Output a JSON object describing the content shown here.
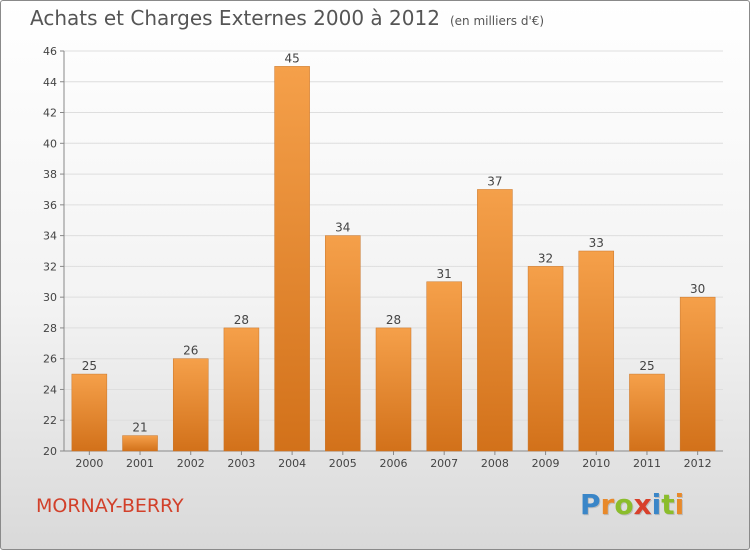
{
  "chart_data": {
    "type": "bar",
    "title": "Achats et Charges Externes 2000 à 2012",
    "unit": "(en milliers d'€)",
    "categories": [
      "2000",
      "2001",
      "2002",
      "2003",
      "2004",
      "2005",
      "2006",
      "2007",
      "2008",
      "2009",
      "2010",
      "2011",
      "2012"
    ],
    "values": [
      25,
      21,
      26,
      28,
      45,
      34,
      28,
      31,
      37,
      32,
      33,
      25,
      30
    ],
    "ylim": [
      20,
      46
    ],
    "yticks": [
      20,
      22,
      24,
      26,
      28,
      30,
      32,
      34,
      36,
      38,
      40,
      42,
      44,
      46
    ],
    "xlabel": "",
    "ylabel": "",
    "grid": true,
    "bar_color": "#f5a04a",
    "bar_color_dark": "#d2711a"
  },
  "footer": {
    "commune": "MORNAY-BERRY",
    "logo_letters": [
      {
        "ch": "P",
        "color": "#3a86c8"
      },
      {
        "ch": "r",
        "color": "#e8892a"
      },
      {
        "ch": "o",
        "color": "#8bbd2c"
      },
      {
        "ch": "x",
        "color": "#d8402b"
      },
      {
        "ch": "i",
        "color": "#3a86c8"
      },
      {
        "ch": "t",
        "color": "#8bbd2c"
      },
      {
        "ch": "i",
        "color": "#e8892a"
      }
    ]
  }
}
